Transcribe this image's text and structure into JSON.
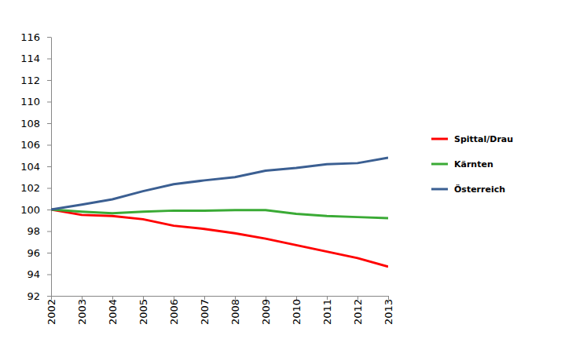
{
  "chart_data": {
    "type": "line",
    "x": [
      2002,
      2003,
      2004,
      2005,
      2006,
      2007,
      2008,
      2009,
      2010,
      2011,
      2012,
      2013
    ],
    "xlim": [
      2002,
      2013
    ],
    "xticks": [
      2002,
      2003,
      2004,
      2005,
      2006,
      2007,
      2008,
      2009,
      2010,
      2011,
      2012,
      2013
    ],
    "ylim": [
      92,
      116
    ],
    "yticks": [
      92,
      94,
      96,
      98,
      100,
      102,
      104,
      106,
      108,
      110,
      112,
      114,
      116
    ],
    "grid": false,
    "legend": "right",
    "series": [
      {
        "name": "Spittal/Drau",
        "color": "#ff0000",
        "values": [
          100,
          99.5,
          99.4,
          99.1,
          98.5,
          98.2,
          97.8,
          97.3,
          96.7,
          96.1,
          95.5,
          94.7
        ]
      },
      {
        "name": "Kärnten",
        "color": "#3aaa35",
        "values": [
          100,
          99.8,
          99.65,
          99.8,
          99.9,
          99.9,
          99.95,
          99.95,
          99.6,
          99.4,
          99.3,
          99.2
        ]
      },
      {
        "name": "Österreich",
        "color": "#3b5f92",
        "values": [
          100,
          100.45,
          100.95,
          101.7,
          102.35,
          102.7,
          103.0,
          103.6,
          103.85,
          104.2,
          104.3,
          104.8
        ]
      }
    ]
  }
}
